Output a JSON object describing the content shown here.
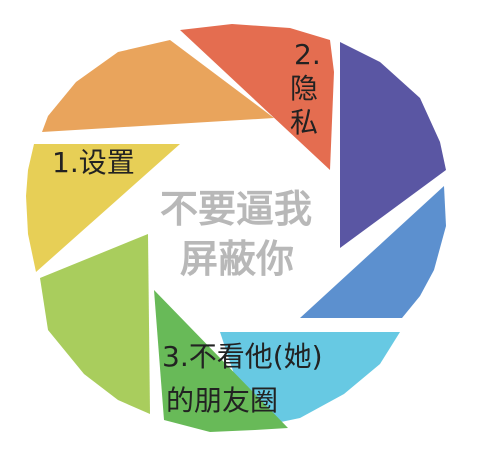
{
  "colors": {
    "orange": "#e9a45c",
    "red": "#e46d50",
    "purple": "#5a56a3",
    "blue": "#5c90cf",
    "cyan": "#67c9e3",
    "green": "#68ba58",
    "light_green": "#a9cd5d",
    "yellow": "#e7cf56"
  },
  "center": {
    "line1": "不要逼我",
    "line2": "屏蔽你"
  },
  "steps": {
    "settings": "1.设置",
    "privacy": {
      "number": "2.",
      "char1": "隐",
      "char2": "私"
    },
    "hide": {
      "line1": "3.不看他(她)",
      "line2": "的朋友圈"
    }
  }
}
